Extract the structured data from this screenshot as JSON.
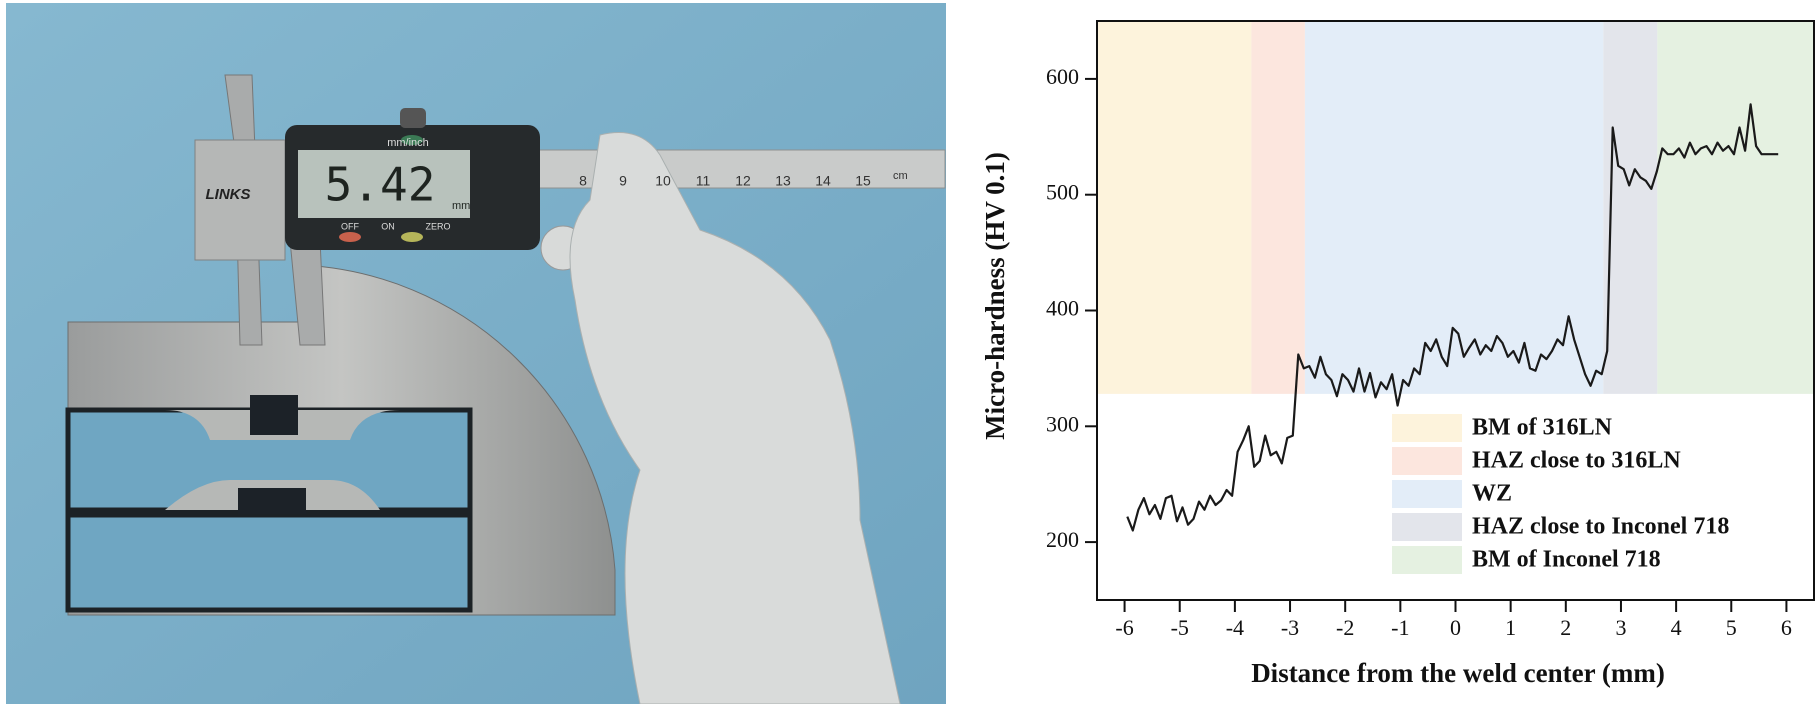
{
  "photo": {
    "display": "5.42",
    "display_unit": "mm",
    "mode": "mm/inch",
    "brand": "LINKS",
    "buttons": [
      "OFF",
      "ON",
      "ZERO"
    ],
    "ruler_numbers": [
      "8",
      "9",
      "10",
      "11",
      "12",
      "13",
      "14",
      "15"
    ],
    "ruler_unit": "cm"
  },
  "chart_data": {
    "type": "line",
    "xlabel": "Distance from the weld center (mm)",
    "ylabel": "Micro-hardness (HV 0.1)",
    "color": "#1a1a1a",
    "xlim": [
      -6.5,
      6.5
    ],
    "xticks": [
      -6,
      -5,
      -4,
      -3,
      -2,
      -1,
      0,
      1,
      2,
      3,
      4,
      5,
      6
    ],
    "ylim": [
      150,
      650
    ],
    "yticks": [
      200,
      300,
      400,
      500,
      600
    ],
    "legend": "lower right",
    "regions": [
      {
        "name": "BM of 316LN",
        "color": "#fdf3dc",
        "xlim": [
          -6.5,
          -3.7
        ],
        "ylim": [
          328,
          650
        ]
      },
      {
        "name": "HAZ close to 316LN",
        "color": "#fce6de",
        "xlim": [
          -3.7,
          -2.73
        ],
        "ylim": [
          328,
          650
        ]
      },
      {
        "name": "WZ",
        "color": "#e3edf8",
        "xlim": [
          -2.73,
          2.68
        ],
        "ylim": [
          328,
          650
        ]
      },
      {
        "name": "HAZ close to Inconel 718",
        "color": "#e3e5eb",
        "xlim": [
          2.68,
          3.66
        ],
        "ylim": [
          328,
          650
        ]
      },
      {
        "name": "BM of Inconel 718",
        "color": "#e5f1e1",
        "xlim": [
          3.66,
          6.5
        ],
        "ylim": [
          328,
          650
        ]
      }
    ],
    "x": [
      -5.95,
      -5.85,
      -5.75,
      -5.65,
      -5.55,
      -5.45,
      -5.35,
      -5.25,
      -5.15,
      -5.05,
      -4.95,
      -4.85,
      -4.75,
      -4.65,
      -4.55,
      -4.45,
      -4.35,
      -4.25,
      -4.15,
      -4.05,
      -3.95,
      -3.85,
      -3.75,
      -3.65,
      -3.55,
      -3.45,
      -3.35,
      -3.25,
      -3.15,
      -3.05,
      -2.95,
      -2.85,
      -2.75,
      -2.65,
      -2.55,
      -2.45,
      -2.35,
      -2.25,
      -2.15,
      -2.05,
      -1.95,
      -1.85,
      -1.75,
      -1.65,
      -1.55,
      -1.45,
      -1.35,
      -1.25,
      -1.15,
      -1.05,
      -0.95,
      -0.85,
      -0.75,
      -0.65,
      -0.55,
      -0.45,
      -0.35,
      -0.25,
      -0.15,
      -0.05,
      0.05,
      0.15,
      0.25,
      0.35,
      0.45,
      0.55,
      0.65,
      0.75,
      0.85,
      0.95,
      1.05,
      1.15,
      1.25,
      1.35,
      1.45,
      1.55,
      1.65,
      1.75,
      1.85,
      1.95,
      2.05,
      2.15,
      2.25,
      2.35,
      2.45,
      2.55,
      2.65,
      2.75,
      2.85,
      2.95,
      3.05,
      3.15,
      3.25,
      3.35,
      3.45,
      3.55,
      3.65,
      3.75,
      3.85,
      3.95,
      4.05,
      4.15,
      4.25,
      4.35,
      4.45,
      4.55,
      4.65,
      4.75,
      4.85,
      4.95,
      5.05,
      5.15,
      5.25,
      5.35,
      5.45,
      5.55,
      5.65,
      5.75,
      5.85
    ],
    "values": [
      222,
      210,
      228,
      238,
      224,
      232,
      220,
      238,
      240,
      218,
      230,
      215,
      220,
      235,
      228,
      240,
      232,
      236,
      245,
      240,
      278,
      288,
      300,
      265,
      270,
      292,
      275,
      278,
      268,
      290,
      292,
      362,
      350,
      352,
      342,
      360,
      345,
      340,
      326,
      345,
      340,
      330,
      350,
      330,
      346,
      325,
      338,
      332,
      345,
      318,
      340,
      335,
      350,
      345,
      372,
      365,
      375,
      360,
      352,
      385,
      380,
      360,
      368,
      375,
      362,
      370,
      365,
      378,
      372,
      360,
      365,
      355,
      372,
      350,
      348,
      362,
      358,
      365,
      375,
      370,
      395,
      375,
      360,
      345,
      335,
      348,
      345,
      365,
      558,
      525,
      522,
      508,
      522,
      515,
      512,
      505,
      520,
      540,
      535,
      535,
      540,
      532,
      545,
      535,
      540,
      542,
      535,
      545,
      538,
      542,
      535,
      558,
      538,
      578,
      542,
      535,
      535,
      535,
      535
    ]
  }
}
